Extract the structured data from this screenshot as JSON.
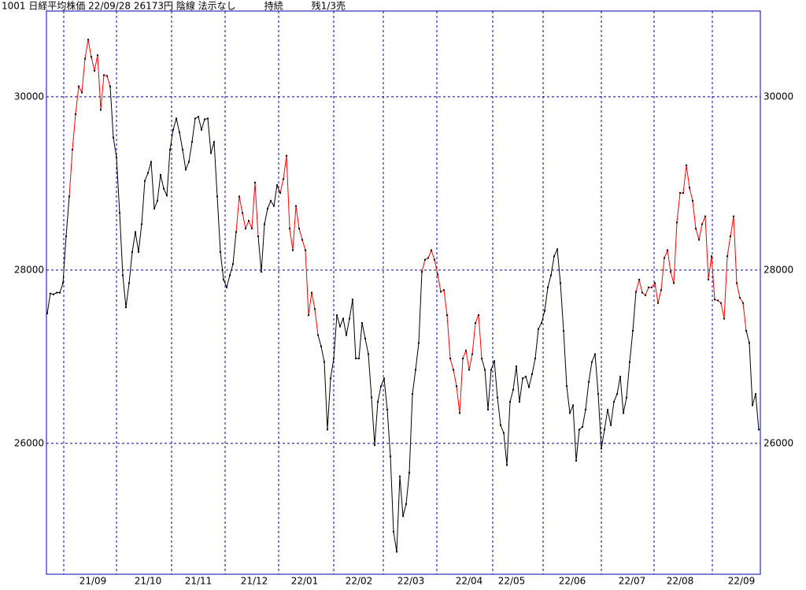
{
  "chart_data": {
    "type": "line",
    "title": "1001 日経平均株価 22/09/28 26173円 陰線 法示なし　　　持続　　　残1/3売",
    "ylim": [
      24490,
      30990
    ],
    "yticks": [
      26000,
      28000,
      30000
    ],
    "xlim": [
      -0.25,
      226.5
    ],
    "grid": true,
    "grid_color": "#0000aa",
    "frame_color": "#0000aa",
    "month_starts": [
      5.25,
      22,
      39.5,
      56.5,
      73.5,
      91,
      106.75,
      123.75,
      141.5,
      157.5,
      176,
      192.75,
      211.25
    ],
    "xticks": [
      {
        "value": 14.5,
        "label": "21/09"
      },
      {
        "value": 32,
        "label": "21/10"
      },
      {
        "value": 48,
        "label": "21/11"
      },
      {
        "value": 65.75,
        "label": "21/12"
      },
      {
        "value": 81.75,
        "label": "22/01"
      },
      {
        "value": 99,
        "label": "22/02"
      },
      {
        "value": 115.5,
        "label": "22/03"
      },
      {
        "value": 134,
        "label": "22/04"
      },
      {
        "value": 147.5,
        "label": "22/05"
      },
      {
        "value": 166.75,
        "label": "22/06"
      },
      {
        "value": 185.75,
        "label": "22/07"
      },
      {
        "value": 201,
        "label": "22/08"
      },
      {
        "value": 220.5,
        "label": "22/09"
      }
    ],
    "color": "#000000",
    "highlight": {
      "color": "#ff0000",
      "ranges": [
        [
          7,
          20
        ],
        [
          60,
          67
        ],
        [
          74,
          86
        ],
        [
          119,
          138
        ],
        [
          187,
          222
        ]
      ]
    },
    "values": [
      27500,
      27730,
      27720,
      27740,
      27740,
      27850,
      28390,
      28850,
      29390,
      29800,
      30120,
      30050,
      30440,
      30660,
      30460,
      30300,
      30480,
      29850,
      30250,
      30240,
      30120,
      29530,
      29300,
      28660,
      27940,
      27570,
      27850,
      28210,
      28440,
      28210,
      28530,
      29030,
      29120,
      29250,
      28710,
      28800,
      29100,
      28940,
      28860,
      29390,
      29620,
      29750,
      29590,
      29390,
      29160,
      29250,
      29480,
      29750,
      29770,
      29620,
      29740,
      29750,
      29350,
      29480,
      28850,
      28210,
      27890,
      27800,
      27940,
      28070,
      28440,
      28850,
      28660,
      28480,
      28570,
      28480,
      29010,
      28390,
      27980,
      28530,
      28710,
      28800,
      28740,
      28980,
      28890,
      29050,
      29320,
      28480,
      28230,
      28740,
      28480,
      28350,
      28230,
      27480,
      27740,
      27550,
      27250,
      27120,
      26940,
      26160,
      26750,
      26980,
      27480,
      27350,
      27440,
      27250,
      27440,
      27660,
      26980,
      26980,
      27390,
      27210,
      27030,
      26530,
      25980,
      26480,
      26660,
      26750,
      26390,
      25850,
      24980,
      24750,
      25620,
      25160,
      25300,
      25660,
      26570,
      26850,
      27160,
      27980,
      28120,
      28140,
      28230,
      28120,
      27950,
      27750,
      27770,
      27480,
      26980,
      26850,
      26660,
      26350,
      26980,
      27070,
      26850,
      27030,
      27390,
      27480,
      26980,
      26850,
      26390,
      26850,
      26950,
      26530,
      26210,
      26120,
      25750,
      26480,
      26620,
      26890,
      26480,
      26750,
      26770,
      26650,
      26800,
      26980,
      27320,
      27390,
      27530,
      27800,
      27940,
      28160,
      28240,
      27850,
      27300,
      26660,
      26350,
      26440,
      25800,
      26160,
      26190,
      26390,
      26710,
      26940,
      27030,
      26570,
      25940,
      26160,
      26390,
      26210,
      26480,
      26570,
      26770,
      26350,
      26530,
      26940,
      27300,
      27750,
      27890,
      27740,
      27710,
      27800,
      27800,
      27850,
      27620,
      27770,
      28140,
      28230,
      27980,
      27850,
      28550,
      28890,
      28890,
      29210,
      28950,
      28800,
      28480,
      28350,
      28530,
      28620,
      27890,
      28160,
      27660,
      27650,
      27620,
      27440,
      28160,
      28390,
      28620,
      27850,
      27680,
      27620,
      27300,
      27160,
      26440,
      26570,
      26160
    ]
  }
}
